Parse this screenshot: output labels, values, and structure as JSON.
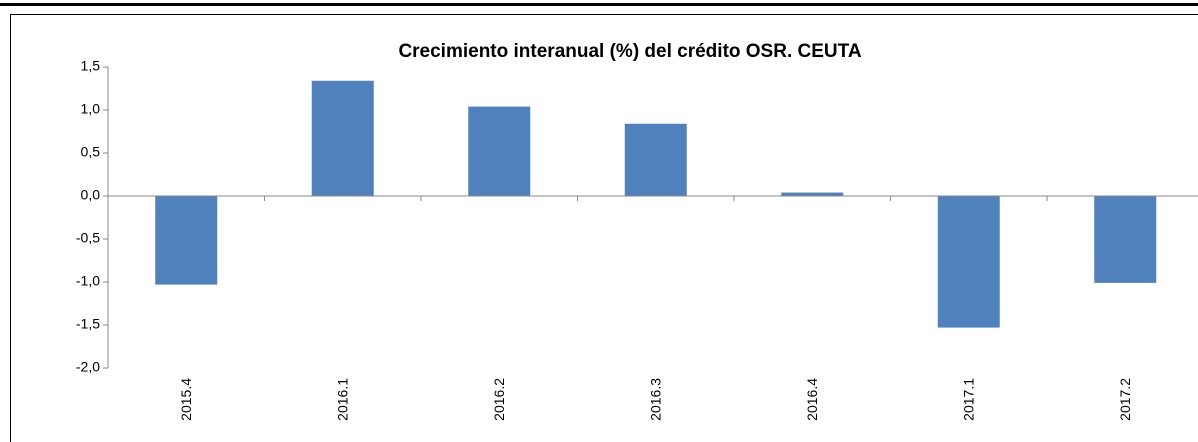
{
  "chart_data": {
    "type": "bar",
    "title": "Crecimiento interanual (%) del crédito OSR. CEUTA",
    "categories": [
      "2015.4",
      "2016.1",
      "2016.2",
      "2016.3",
      "2016.4",
      "2017.1",
      "2017.2"
    ],
    "values": [
      -1.03,
      1.34,
      1.04,
      0.84,
      0.04,
      -1.53,
      -1.01
    ],
    "color": "#4f81bd",
    "ylim": [
      -2.0,
      1.5
    ],
    "yticks": [
      {
        "value": -2.0,
        "label": "-2,0"
      },
      {
        "value": -1.5,
        "label": "-1,5"
      },
      {
        "value": -1.0,
        "label": "-1,0"
      },
      {
        "value": -0.5,
        "label": "-0,5"
      },
      {
        "value": 0.0,
        "label": "0,0"
      },
      {
        "value": 0.5,
        "label": "0,5"
      },
      {
        "value": 1.0,
        "label": "1,0"
      },
      {
        "value": 1.5,
        "label": "1,5"
      }
    ],
    "grid": false
  }
}
